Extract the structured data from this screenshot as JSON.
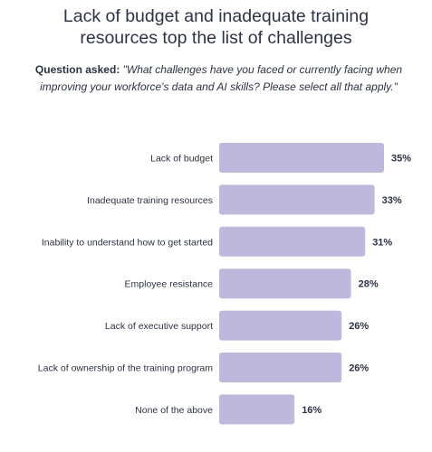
{
  "title_lines": [
    "Lack of budget and inadequate training",
    "resources top the list of challenges"
  ],
  "question": {
    "label": "Question asked:",
    "text": "\"What challenges have you faced or currently facing when improving your workforce's data and AI skills? Please select all that apply.\""
  },
  "colors": {
    "bar": "#beb8dd",
    "text": "#2b3241"
  },
  "chart_data": {
    "type": "bar",
    "orientation": "horizontal",
    "categories": [
      "Lack of budget",
      "Inadequate training resources",
      "Inability to understand how to get started",
      "Employee resistance",
      "Lack of executive support",
      "Lack of ownership of the training program",
      "None of the above"
    ],
    "values": [
      35,
      33,
      31,
      28,
      26,
      26,
      16
    ],
    "value_labels": [
      "35%",
      "33%",
      "31%",
      "28%",
      "26%",
      "26%",
      "16%"
    ],
    "unit": "%",
    "xlim": [
      0,
      35
    ],
    "grid": false,
    "legend": "none"
  }
}
